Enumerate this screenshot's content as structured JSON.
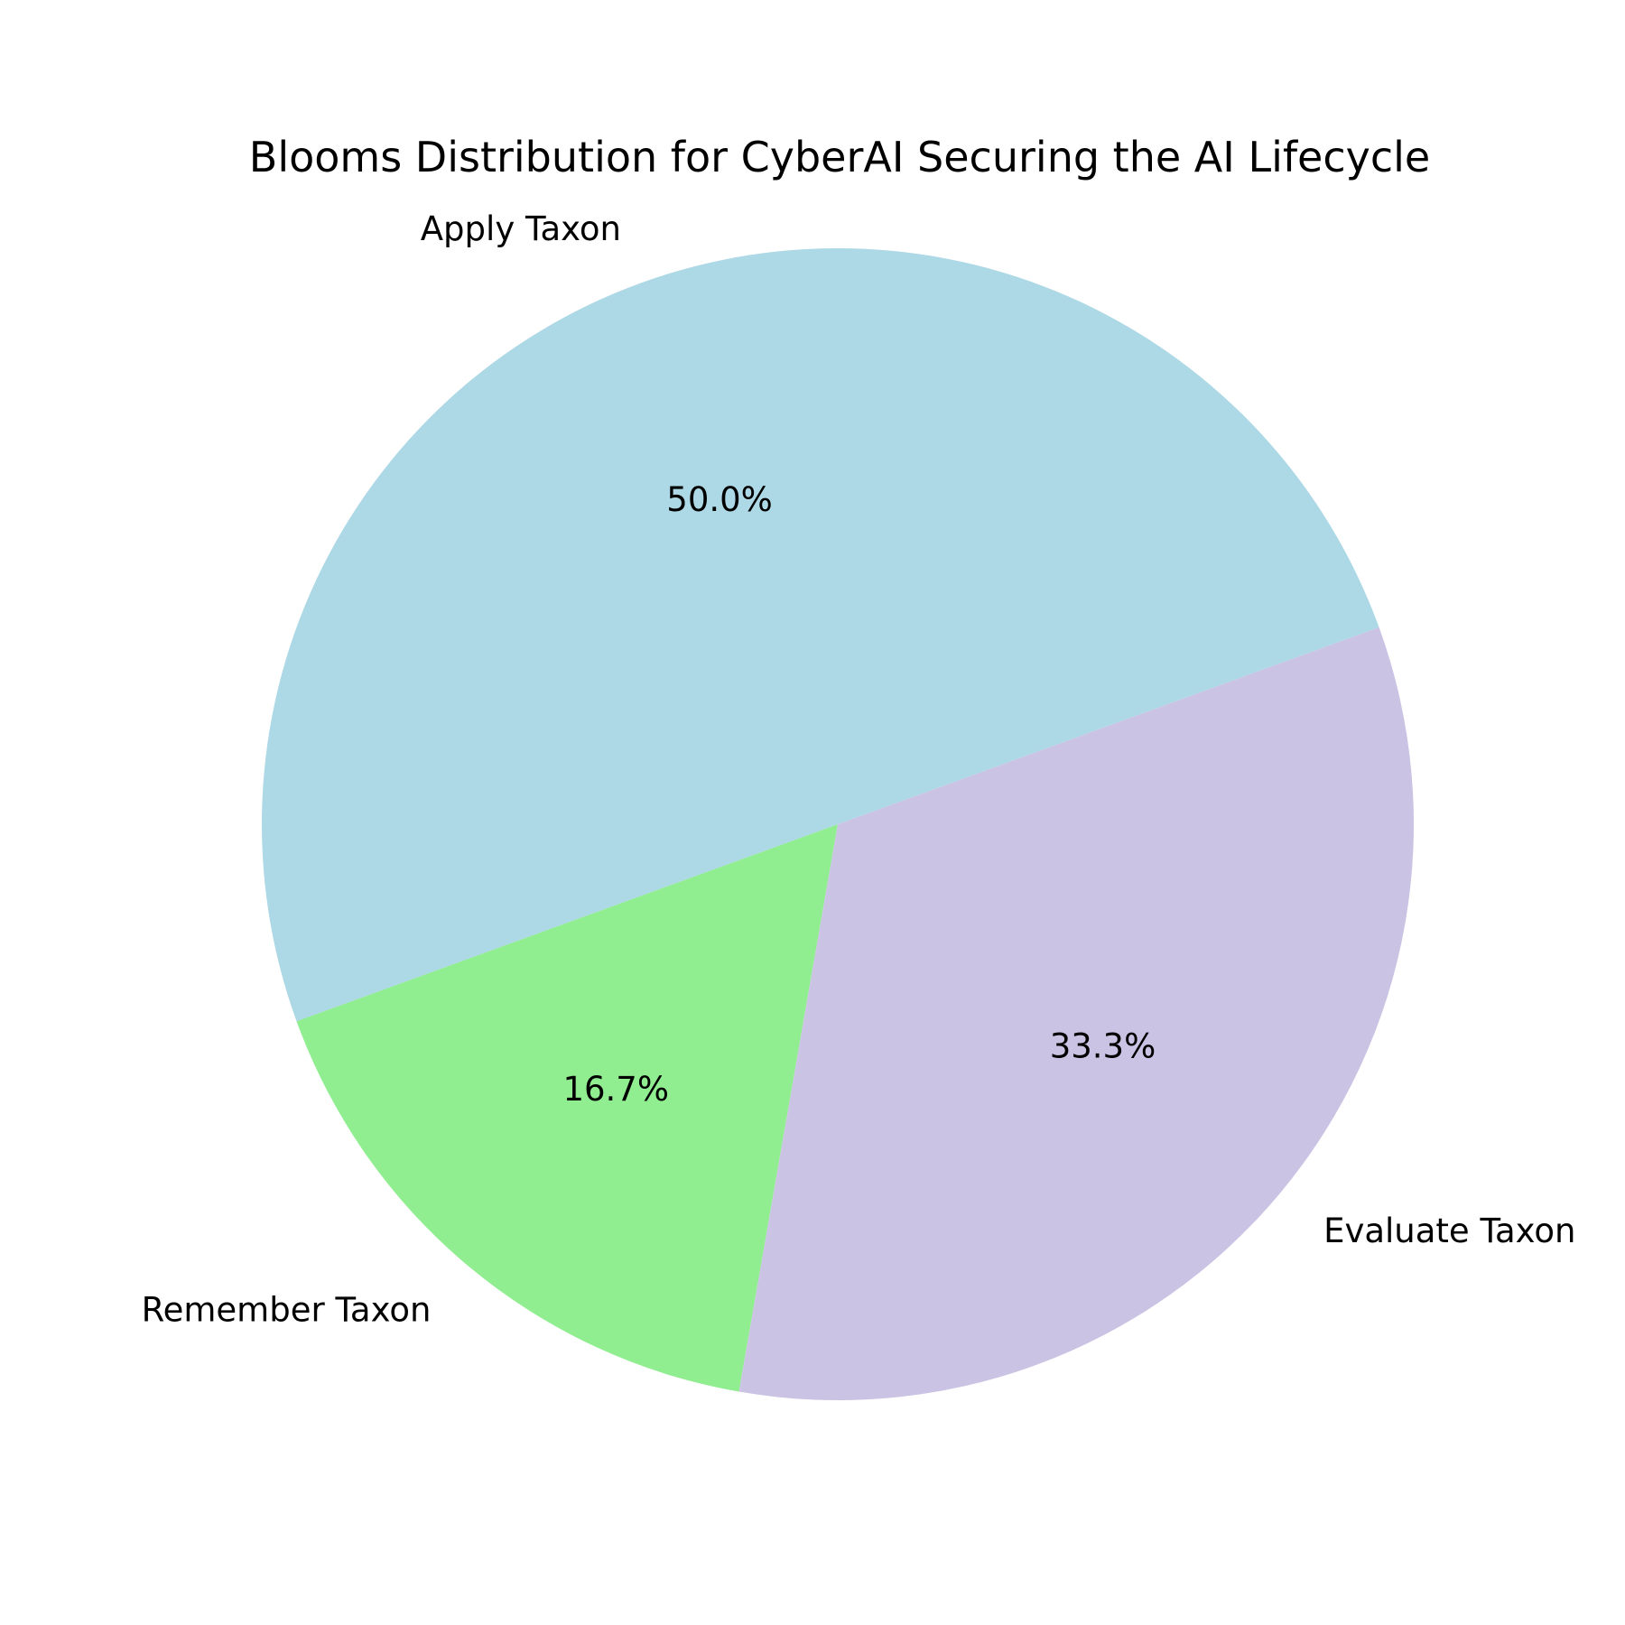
{
  "chart_data": {
    "type": "pie",
    "title": "Blooms Distribution for CyberAI Securing the AI Lifecycle",
    "start_angle_deg": 200,
    "slices": [
      {
        "label": "Remember Taxon",
        "value": 16.7,
        "pct_label": "16.7%",
        "color": "#90ee90"
      },
      {
        "label": "Evaluate Taxon",
        "value": 33.3,
        "pct_label": "33.3%",
        "color": "#cbc3e3"
      },
      {
        "label": "Apply Taxon",
        "value": 50.0,
        "pct_label": "50.0%",
        "color": "#add8e6"
      }
    ]
  }
}
